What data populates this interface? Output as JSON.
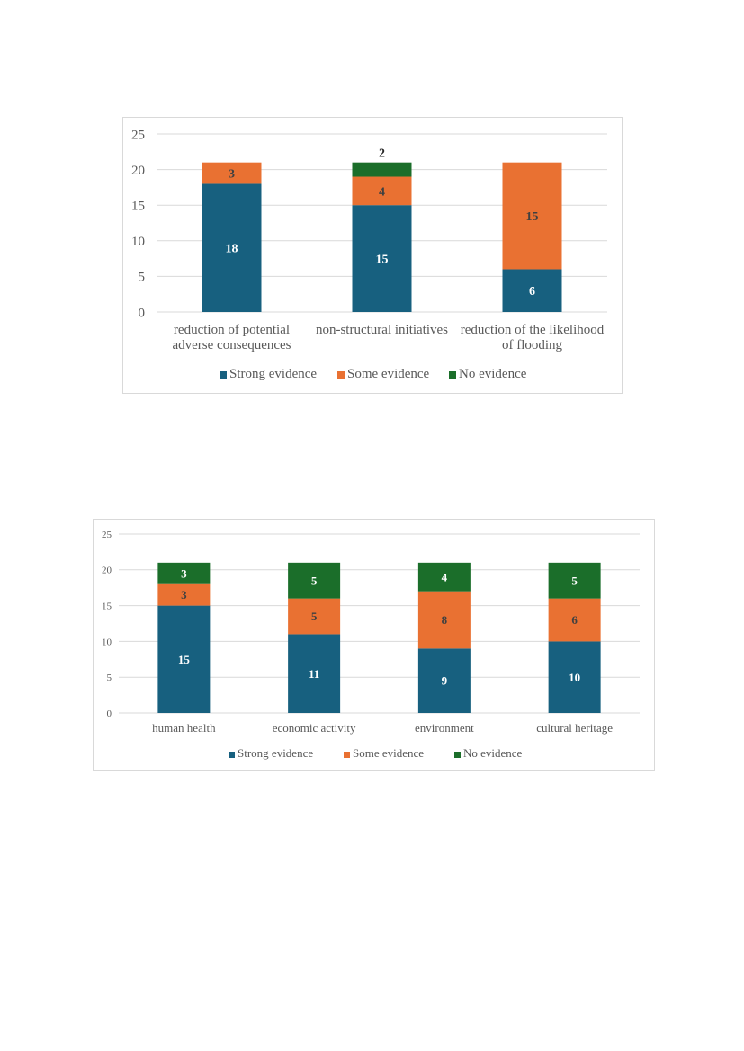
{
  "colors": {
    "strong": "#17607f",
    "some": "#e97132",
    "none": "#1b6e2a"
  },
  "chart_data": [
    {
      "type": "bar",
      "stacked": true,
      "categories": [
        [
          "reduction of potential",
          "adverse consequences"
        ],
        [
          "non-structural initiatives"
        ],
        [
          "reduction of the likelihood",
          "of flooding"
        ]
      ],
      "series": [
        {
          "name": "Strong evidence",
          "values": [
            18,
            15,
            6
          ],
          "color": "#17607f"
        },
        {
          "name": "Some evidence",
          "values": [
            3,
            4,
            15
          ],
          "color": "#e97132"
        },
        {
          "name": "No evidence",
          "values": [
            0,
            2,
            0
          ],
          "color": "#1b6e2a"
        }
      ],
      "ylim": [
        0,
        25
      ],
      "yticks": [
        0,
        5,
        10,
        15,
        20,
        25
      ],
      "grid": true,
      "legend_position": "bottom"
    },
    {
      "type": "bar",
      "stacked": true,
      "categories": [
        [
          "human health"
        ],
        [
          "economic activity"
        ],
        [
          "environment"
        ],
        [
          "cultural heritage"
        ]
      ],
      "series": [
        {
          "name": "Strong evidence",
          "values": [
            15,
            11,
            9,
            10
          ],
          "color": "#17607f"
        },
        {
          "name": "Some evidence",
          "values": [
            3,
            5,
            8,
            6
          ],
          "color": "#e97132"
        },
        {
          "name": "No evidence",
          "values": [
            3,
            5,
            4,
            5
          ],
          "color": "#1b6e2a"
        }
      ],
      "ylim": [
        0,
        25
      ],
      "yticks": [
        0,
        5,
        10,
        15,
        20,
        25
      ],
      "grid": true,
      "legend_position": "bottom"
    }
  ]
}
